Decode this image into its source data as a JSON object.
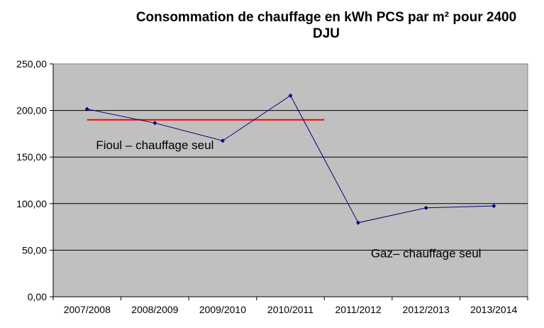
{
  "chart_data": {
    "type": "line",
    "title_lines": [
      "Consommation de chauffage en kWh PCS par m² pour 2400",
      "DJU"
    ],
    "categories": [
      "2007/2008",
      "2008/2009",
      "2009/2010",
      "2010/2011",
      "2011/2012",
      "2012/2013",
      "2013/2014"
    ],
    "series": [
      {
        "values": [
          201.5,
          186.5,
          167.5,
          216,
          79.5,
          95.5,
          97.5
        ],
        "color": "#000080"
      }
    ],
    "reference_line": {
      "value": 190,
      "from_category": "2007/2008",
      "to_category": "2010/2011",
      "color": "#ff0000"
    },
    "y_ticks": [
      "0,00",
      "50,00",
      "100,00",
      "150,00",
      "200,00",
      "250,00"
    ],
    "ylim": [
      0,
      250
    ],
    "grid": true,
    "plot_background": "#c0c0c0",
    "annotations": [
      {
        "text": "Fioul – chauffage seul",
        "x_category": "2008/2009",
        "y": 163
      },
      {
        "text": "Gaz– chauffage seul",
        "x_category": "2012/2013",
        "y": 47
      }
    ]
  }
}
